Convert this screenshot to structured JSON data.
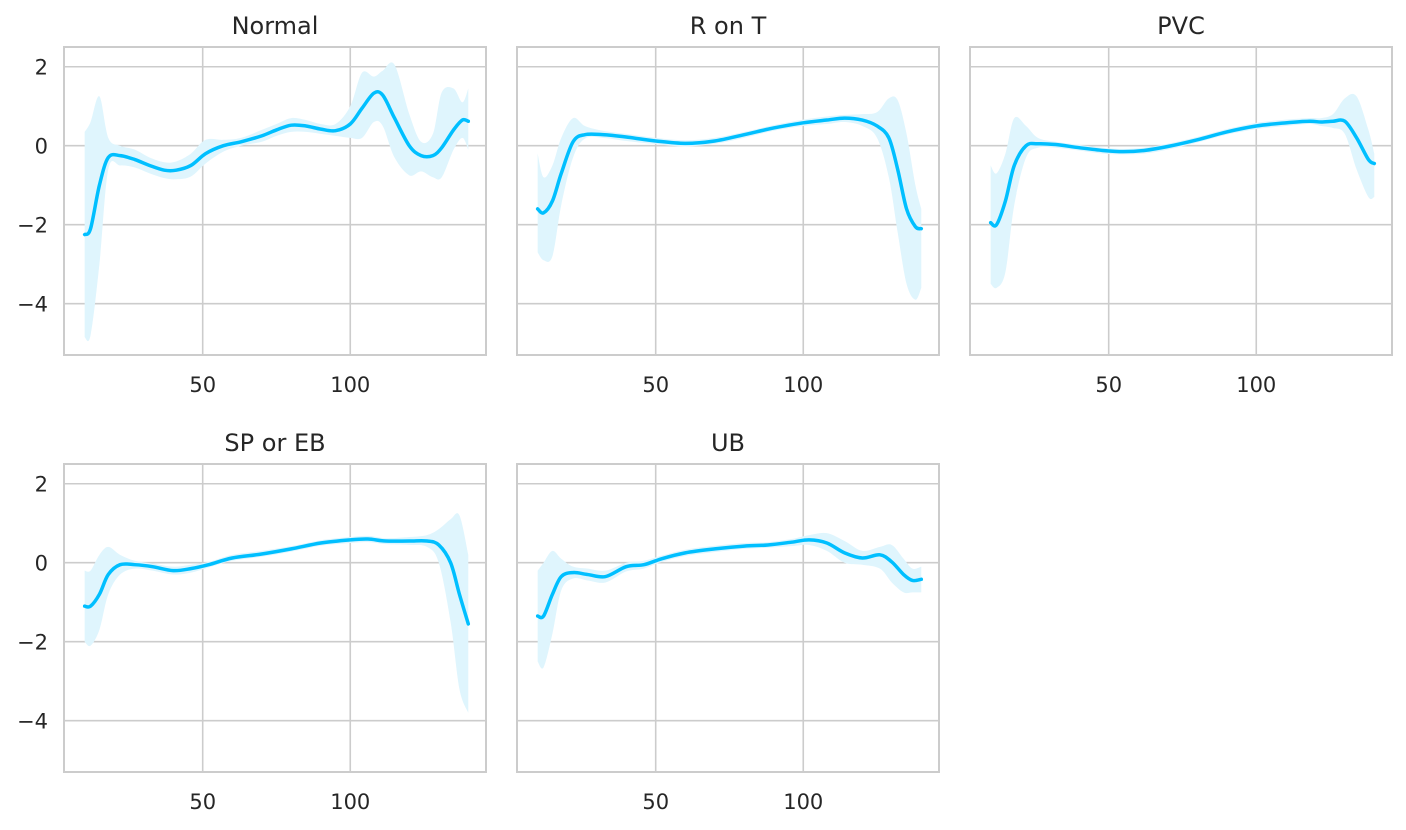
{
  "chart_data": [
    {
      "type": "line",
      "title": "Normal",
      "x_range": [
        3,
        146
      ],
      "ylim": [
        -5.3,
        2.5
      ],
      "xticks": [
        50,
        100
      ],
      "yticks": [
        2,
        0,
        -2,
        -4
      ],
      "grid": true,
      "series_color": "#00bfff",
      "band_color": "#dff5fd",
      "series": [
        {
          "x": [
            10,
            12,
            15,
            18,
            22,
            27,
            32,
            37,
            41,
            46,
            51,
            57,
            63,
            70,
            75,
            80,
            85,
            90,
            95,
            100,
            104,
            108,
            111,
            115,
            120,
            124,
            128,
            131,
            135,
            138,
            140
          ],
          "values": [
            -2.25,
            -2.1,
            -1.0,
            -0.3,
            -0.25,
            -0.35,
            -0.5,
            -0.62,
            -0.62,
            -0.5,
            -0.2,
            0.0,
            0.1,
            0.25,
            0.4,
            0.52,
            0.5,
            0.42,
            0.38,
            0.55,
            0.95,
            1.33,
            1.28,
            0.7,
            0.0,
            -0.25,
            -0.25,
            -0.05,
            0.4,
            0.65,
            0.62
          ],
          "lower": [
            -4.85,
            -4.8,
            -3.0,
            -0.6,
            -0.5,
            -0.55,
            -0.7,
            -0.82,
            -0.85,
            -0.78,
            -0.45,
            -0.15,
            0.0,
            0.1,
            0.25,
            0.35,
            0.35,
            0.3,
            0.25,
            0.2,
            0.2,
            0.6,
            0.5,
            -0.3,
            -0.75,
            -0.65,
            -0.8,
            -0.8,
            -0.1,
            0.2,
            -0.1
          ],
          "upper": [
            0.35,
            0.6,
            1.25,
            0.2,
            0.0,
            -0.1,
            -0.3,
            -0.42,
            -0.4,
            -0.2,
            0.15,
            0.15,
            0.2,
            0.4,
            0.55,
            0.7,
            0.65,
            0.55,
            0.55,
            1.0,
            1.85,
            1.75,
            1.9,
            2.05,
            0.8,
            0.1,
            0.3,
            1.35,
            1.45,
            1.1,
            1.45
          ]
        }
      ]
    },
    {
      "type": "line",
      "title": "R on T",
      "x_range": [
        3,
        146
      ],
      "ylim": [
        -5.3,
        2.5
      ],
      "xticks": [
        50,
        100
      ],
      "yticks": [
        2,
        0,
        -2,
        -4
      ],
      "grid": true,
      "series_color": "#00bfff",
      "band_color": "#dff5fd",
      "series": [
        {
          "x": [
            10,
            12,
            15,
            18,
            22,
            26,
            32,
            40,
            50,
            60,
            70,
            80,
            90,
            100,
            108,
            114,
            120,
            125,
            129,
            132,
            135,
            138,
            140
          ],
          "values": [
            -1.6,
            -1.7,
            -1.4,
            -0.7,
            0.1,
            0.28,
            0.28,
            0.22,
            0.12,
            0.06,
            0.12,
            0.28,
            0.45,
            0.58,
            0.65,
            0.7,
            0.65,
            0.5,
            0.2,
            -0.6,
            -1.6,
            -2.05,
            -2.1
          ],
          "lower": [
            -2.7,
            -2.9,
            -2.8,
            -1.5,
            -0.3,
            0.18,
            0.2,
            0.12,
            0.04,
            -0.02,
            0.05,
            0.2,
            0.38,
            0.5,
            0.55,
            0.6,
            0.5,
            0.2,
            -0.8,
            -2.2,
            -3.5,
            -3.9,
            -3.6
          ],
          "upper": [
            -0.2,
            -0.8,
            -0.5,
            0.2,
            0.7,
            0.5,
            0.38,
            0.3,
            0.2,
            0.14,
            0.2,
            0.35,
            0.52,
            0.66,
            0.74,
            0.78,
            0.8,
            0.85,
            1.2,
            1.15,
            0.3,
            -1.0,
            -1.6
          ]
        }
      ]
    },
    {
      "type": "line",
      "title": "PVC",
      "x_range": [
        3,
        146
      ],
      "ylim": [
        -5.3,
        2.5
      ],
      "xticks": [
        50,
        100
      ],
      "yticks": [
        2,
        0,
        -2,
        -4
      ],
      "grid": true,
      "series_color": "#00bfff",
      "band_color": "#dff5fd",
      "series": [
        {
          "x": [
            10,
            12,
            15,
            18,
            22,
            26,
            32,
            40,
            48,
            55,
            62,
            70,
            80,
            90,
            100,
            110,
            118,
            122,
            126,
            130,
            134,
            138,
            140
          ],
          "values": [
            -1.95,
            -2.0,
            -1.4,
            -0.5,
            0.0,
            0.05,
            0.03,
            -0.05,
            -0.12,
            -0.15,
            -0.12,
            -0.02,
            0.15,
            0.35,
            0.5,
            0.58,
            0.62,
            0.6,
            0.62,
            0.62,
            0.2,
            -0.35,
            -0.45
          ],
          "lower": [
            -3.5,
            -3.6,
            -3.2,
            -1.5,
            -0.3,
            -0.05,
            -0.05,
            -0.12,
            -0.2,
            -0.22,
            -0.2,
            -0.1,
            0.08,
            0.28,
            0.42,
            0.5,
            0.55,
            0.5,
            0.45,
            0.3,
            -0.6,
            -1.3,
            -1.3
          ],
          "upper": [
            -0.5,
            -0.7,
            -0.2,
            0.7,
            0.5,
            0.2,
            0.1,
            0.02,
            -0.05,
            -0.08,
            -0.05,
            0.05,
            0.22,
            0.42,
            0.58,
            0.66,
            0.7,
            0.7,
            0.8,
            1.2,
            1.25,
            0.4,
            -0.2
          ]
        }
      ]
    },
    {
      "type": "line",
      "title": "SP or EB",
      "x_range": [
        3,
        146
      ],
      "ylim": [
        -5.3,
        2.5
      ],
      "xticks": [
        50,
        100
      ],
      "yticks": [
        2,
        0,
        -2,
        -4
      ],
      "grid": true,
      "series_color": "#00bfff",
      "band_color": "#dff5fd",
      "series": [
        {
          "x": [
            10,
            12,
            15,
            18,
            22,
            27,
            33,
            40,
            46,
            52,
            60,
            70,
            80,
            90,
            100,
            106,
            112,
            120,
            126,
            130,
            134,
            137,
            140
          ],
          "values": [
            -1.1,
            -1.1,
            -0.8,
            -0.3,
            -0.05,
            -0.05,
            -0.1,
            -0.2,
            -0.15,
            -0.05,
            0.12,
            0.22,
            0.35,
            0.5,
            0.58,
            0.6,
            0.55,
            0.55,
            0.55,
            0.45,
            0.0,
            -0.8,
            -1.55
          ],
          "lower": [
            -2.0,
            -2.1,
            -1.7,
            -0.8,
            -0.3,
            -0.15,
            -0.2,
            -0.3,
            -0.25,
            -0.12,
            0.05,
            0.15,
            0.28,
            0.43,
            0.5,
            0.52,
            0.47,
            0.45,
            0.4,
            0.0,
            -1.5,
            -3.2,
            -3.8
          ],
          "upper": [
            -0.2,
            -0.2,
            0.2,
            0.4,
            0.2,
            0.05,
            -0.02,
            -0.1,
            -0.05,
            0.02,
            0.2,
            0.3,
            0.42,
            0.57,
            0.65,
            0.68,
            0.62,
            0.65,
            0.7,
            0.85,
            1.1,
            1.2,
            0.2
          ]
        }
      ]
    },
    {
      "type": "line",
      "title": "UB",
      "x_range": [
        3,
        146
      ],
      "ylim": [
        -5.3,
        2.5
      ],
      "xticks": [
        50,
        100
      ],
      "yticks": [
        2,
        0,
        -2,
        -4
      ],
      "grid": true,
      "series_color": "#00bfff",
      "band_color": "#dff5fd",
      "series": [
        {
          "x": [
            10,
            12,
            15,
            18,
            22,
            27,
            33,
            40,
            46,
            52,
            60,
            70,
            80,
            88,
            96,
            102,
            108,
            114,
            120,
            126,
            130,
            134,
            137,
            140
          ],
          "values": [
            -1.35,
            -1.35,
            -0.8,
            -0.35,
            -0.25,
            -0.3,
            -0.35,
            -0.1,
            -0.05,
            0.1,
            0.25,
            0.35,
            0.42,
            0.45,
            0.52,
            0.58,
            0.5,
            0.25,
            0.12,
            0.2,
            0.02,
            -0.3,
            -0.45,
            -0.42
          ],
          "lower": [
            -2.5,
            -2.65,
            -1.8,
            -0.7,
            -0.4,
            -0.45,
            -0.5,
            -0.22,
            -0.15,
            0.02,
            0.17,
            0.27,
            0.35,
            0.38,
            0.42,
            0.45,
            0.3,
            0.0,
            -0.05,
            -0.15,
            -0.5,
            -0.75,
            -0.75,
            -0.75
          ],
          "upper": [
            -0.2,
            0.0,
            0.3,
            0.1,
            -0.1,
            -0.15,
            -0.2,
            0.0,
            0.05,
            0.18,
            0.33,
            0.43,
            0.5,
            0.52,
            0.6,
            0.7,
            0.75,
            0.55,
            0.3,
            0.4,
            0.45,
            0.1,
            -0.15,
            -0.1
          ]
        }
      ]
    }
  ]
}
